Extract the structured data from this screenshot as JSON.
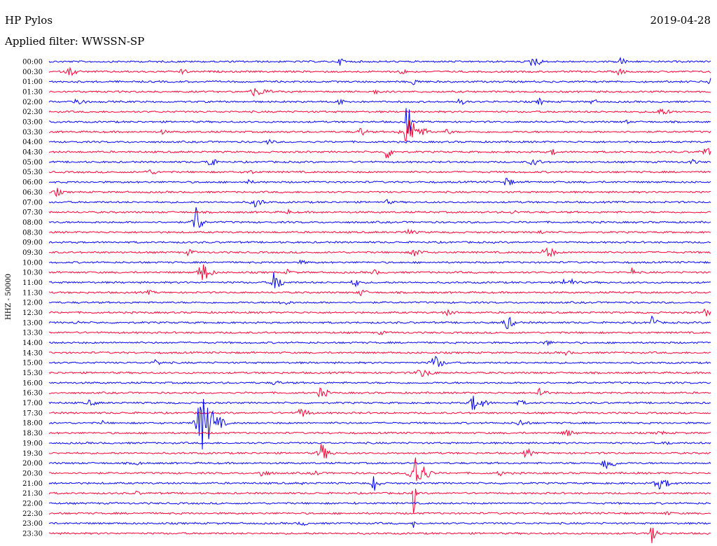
{
  "header": {
    "station": "HP Pylos",
    "date": "2019-04-28",
    "filter_label": "Applied filter: WWSSN-SP"
  },
  "chart_data": {
    "type": "line",
    "ylabel": "HHZ - 50000",
    "colors": {
      "odd_row": "#0000ff",
      "even_row": "#ff0033"
    },
    "rows": [
      {
        "label": "00:00",
        "events": [
          [
            0.44,
            6,
            0.02
          ],
          [
            0.73,
            10,
            0.025
          ],
          [
            0.86,
            8,
            0.02
          ]
        ]
      },
      {
        "label": "00:30",
        "events": [
          [
            0.03,
            6,
            0.03
          ],
          [
            0.2,
            4,
            0.02
          ],
          [
            0.53,
            5,
            0.02
          ],
          [
            0.86,
            5,
            0.02
          ],
          [
            1.0,
            3,
            0.02
          ]
        ]
      },
      {
        "label": "01:00",
        "events": [
          [
            0.55,
            5,
            0.02
          ],
          [
            1.0,
            9,
            0.03
          ]
        ]
      },
      {
        "label": "01:30",
        "events": [
          [
            0.31,
            6,
            0.05
          ],
          [
            0.49,
            4,
            0.02
          ]
        ]
      },
      {
        "label": "02:00",
        "events": [
          [
            0.04,
            6,
            0.03
          ],
          [
            0.44,
            5,
            0.03
          ],
          [
            0.62,
            5,
            0.02
          ],
          [
            0.74,
            5,
            0.02
          ],
          [
            0.82,
            4,
            0.02
          ]
        ]
      },
      {
        "label": "02:30",
        "events": [
          [
            0.92,
            5,
            0.04
          ]
        ]
      },
      {
        "label": "03:00",
        "events": [
          [
            0.54,
            42,
            0.012
          ],
          [
            0.87,
            6,
            0.01
          ]
        ]
      },
      {
        "label": "03:30",
        "events": [
          [
            0.54,
            20,
            0.05
          ],
          [
            0.47,
            7,
            0.02
          ],
          [
            0.17,
            3,
            0.02
          ],
          [
            0.6,
            4,
            0.02
          ]
        ]
      },
      {
        "label": "04:00",
        "events": [
          [
            0.33,
            4,
            0.02
          ],
          [
            1.01,
            9,
            0.02
          ]
        ]
      },
      {
        "label": "04:30",
        "events": [
          [
            0.51,
            12,
            0.02
          ],
          [
            0.76,
            4,
            0.02
          ],
          [
            0.99,
            6,
            0.04
          ]
        ]
      },
      {
        "label": "05:00",
        "events": [
          [
            0.24,
            12,
            0.02
          ],
          [
            0.73,
            5,
            0.03
          ],
          [
            0.97,
            4,
            0.02
          ]
        ]
      },
      {
        "label": "05:30",
        "events": [
          [
            0.15,
            4,
            0.03
          ],
          [
            0.3,
            4,
            0.02
          ]
        ]
      },
      {
        "label": "06:00",
        "events": [
          [
            0.69,
            8,
            0.02
          ],
          [
            0.3,
            3,
            0.02
          ]
        ]
      },
      {
        "label": "06:30",
        "events": [
          [
            0.01,
            7,
            0.02
          ]
        ]
      },
      {
        "label": "07:00",
        "events": [
          [
            0.31,
            7,
            0.03
          ],
          [
            0.51,
            3,
            0.02
          ]
        ]
      },
      {
        "label": "07:30",
        "events": [
          [
            0.36,
            5,
            0.01
          ],
          [
            0.7,
            3,
            0.02
          ]
        ]
      },
      {
        "label": "08:00",
        "events": [
          [
            0.22,
            30,
            0.02
          ]
        ]
      },
      {
        "label": "08:30",
        "events": [
          [
            0.54,
            4,
            0.03
          ],
          [
            0.74,
            3,
            0.02
          ]
        ]
      },
      {
        "label": "09:00",
        "events": [
          [
            1.02,
            7,
            0.02
          ]
        ]
      },
      {
        "label": "09:30",
        "events": [
          [
            0.21,
            5,
            0.02
          ],
          [
            0.55,
            6,
            0.03
          ],
          [
            0.75,
            10,
            0.03
          ]
        ]
      },
      {
        "label": "10:00",
        "events": [
          [
            0.38,
            3,
            0.02
          ]
        ]
      },
      {
        "label": "10:30",
        "events": [
          [
            0.23,
            16,
            0.03
          ],
          [
            0.36,
            4,
            0.02
          ],
          [
            0.49,
            4,
            0.02
          ],
          [
            0.88,
            8,
            0.01
          ]
        ]
      },
      {
        "label": "11:00",
        "events": [
          [
            0.34,
            16,
            0.025
          ],
          [
            0.46,
            7,
            0.02
          ],
          [
            0.78,
            8,
            0.03
          ]
        ]
      },
      {
        "label": "11:30",
        "events": [
          [
            0.47,
            6,
            0.02
          ],
          [
            0.15,
            3,
            0.02
          ]
        ]
      },
      {
        "label": "12:00",
        "events": [
          [
            0.35,
            4,
            0.03
          ]
        ]
      },
      {
        "label": "12:30",
        "events": [
          [
            0.99,
            6,
            0.02
          ],
          [
            0.6,
            4,
            0.03
          ]
        ]
      },
      {
        "label": "13:00",
        "events": [
          [
            0.04,
            5,
            0.01
          ],
          [
            0.69,
            10,
            0.03
          ],
          [
            0.91,
            13,
            0.015
          ]
        ]
      },
      {
        "label": "13:30",
        "events": [
          [
            0.5,
            3,
            0.02
          ]
        ]
      },
      {
        "label": "14:00",
        "events": [
          [
            0.75,
            4,
            0.02
          ]
        ]
      },
      {
        "label": "14:30",
        "events": [
          [
            0.78,
            3,
            0.02
          ]
        ]
      },
      {
        "label": "15:00",
        "events": [
          [
            0.58,
            12,
            0.03
          ],
          [
            0.16,
            5,
            0.02
          ]
        ]
      },
      {
        "label": "15:30",
        "events": [
          [
            0.56,
            6,
            0.04
          ]
        ]
      },
      {
        "label": "16:00",
        "events": [
          [
            0.34,
            4,
            0.02
          ]
        ]
      },
      {
        "label": "16:30",
        "events": [
          [
            0.41,
            12,
            0.02
          ],
          [
            0.74,
            10,
            0.02
          ]
        ]
      },
      {
        "label": "17:00",
        "events": [
          [
            0.64,
            11,
            0.04
          ],
          [
            0.06,
            4,
            0.03
          ],
          [
            0.71,
            5,
            0.02
          ]
        ]
      },
      {
        "label": "17:30",
        "events": [
          [
            0.38,
            7,
            0.03
          ]
        ]
      },
      {
        "label": "18:00",
        "events": [
          [
            0.23,
            40,
            0.05
          ],
          [
            0.08,
            6,
            0.005
          ],
          [
            0.71,
            5,
            0.03
          ]
        ]
      },
      {
        "label": "18:30",
        "events": [
          [
            0.78,
            5,
            0.03
          ],
          [
            0.92,
            4,
            0.02
          ]
        ]
      },
      {
        "label": "19:00",
        "events": [
          [
            0.93,
            3,
            0.02
          ]
        ]
      },
      {
        "label": "19:30",
        "events": [
          [
            0.41,
            14,
            0.03
          ],
          [
            0.72,
            8,
            0.02
          ]
        ]
      },
      {
        "label": "20:00",
        "events": [
          [
            0.84,
            12,
            0.03
          ],
          [
            0.13,
            3,
            0.02
          ]
        ]
      },
      {
        "label": "20:30",
        "events": [
          [
            0.55,
            30,
            0.04
          ],
          [
            0.32,
            5,
            0.03
          ],
          [
            0.4,
            5,
            0.02
          ],
          [
            0.68,
            4,
            0.02
          ]
        ]
      },
      {
        "label": "21:00",
        "events": [
          [
            0.49,
            18,
            0.015
          ],
          [
            0.92,
            8,
            0.04
          ],
          [
            0.38,
            5,
            0.005
          ]
        ]
      },
      {
        "label": "21:30",
        "events": [
          [
            0.55,
            30,
            0.01
          ],
          [
            0.13,
            3,
            0.02
          ]
        ]
      },
      {
        "label": "22:00",
        "events": [
          [
            0.46,
            4,
            0.005
          ]
        ]
      },
      {
        "label": "22:30",
        "events": [
          [
            0.93,
            3,
            0.02
          ]
        ]
      },
      {
        "label": "23:00",
        "events": [
          [
            0.55,
            8,
            0.005
          ],
          [
            0.38,
            4,
            0.02
          ]
        ]
      },
      {
        "label": "23:30",
        "events": [
          [
            0.91,
            14,
            0.02
          ]
        ]
      }
    ]
  }
}
